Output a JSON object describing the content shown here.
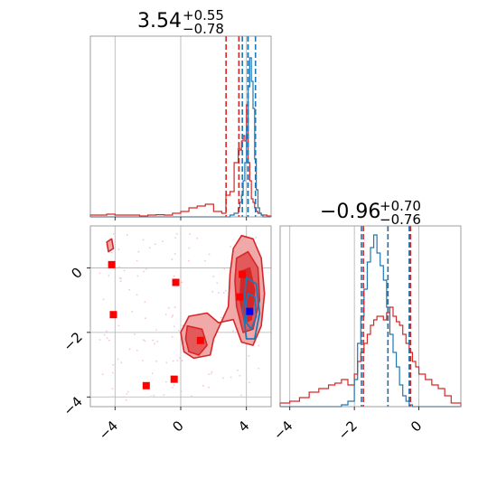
{
  "chart_data": [
    {
      "type": "histogram",
      "panel": "top-left",
      "title": {
        "value": "3.54",
        "plus": "+0.55",
        "minus": "−0.78"
      },
      "xlim": [
        -5.5,
        5.5
      ],
      "grid": true,
      "bin_edges": [
        -5.5,
        -5.0,
        -4.5,
        -4.0,
        -3.5,
        -3.0,
        -2.5,
        -2.0,
        -1.5,
        -1.0,
        -0.5,
        0.0,
        0.5,
        1.0,
        1.5,
        2.0,
        2.5,
        2.75,
        3.0,
        3.25,
        3.5,
        3.6,
        3.7,
        3.8,
        3.9,
        4.0,
        4.1,
        4.2,
        4.3,
        4.4,
        4.5,
        4.6,
        4.7,
        4.8,
        4.9,
        5.0,
        5.25,
        5.5
      ],
      "series": [
        {
          "color": "#d62728",
          "counts": [
            0.01,
            0.01,
            0.015,
            0.01,
            0.01,
            0.01,
            0.005,
            0.01,
            0.012,
            0.01,
            0.02,
            0.03,
            0.05,
            0.06,
            0.07,
            0.03,
            0.02,
            0.12,
            0.14,
            0.3,
            0.38,
            0.37,
            0.42,
            0.45,
            0.42,
            0.62,
            0.3,
            0.2,
            0.1,
            0.08,
            0.05,
            0.03,
            0.02,
            0.02,
            0.01,
            0.01,
            0.005
          ]
        },
        {
          "color": "#1f77b4",
          "counts": [
            0,
            0,
            0,
            0,
            0,
            0,
            0,
            0,
            0,
            0,
            0,
            0,
            0,
            0,
            0,
            0,
            0,
            0,
            0.01,
            0.02,
            0.05,
            0.08,
            0.12,
            0.2,
            0.3,
            0.5,
            0.72,
            0.88,
            0.75,
            0.6,
            0.32,
            0.15,
            0.05,
            0.02,
            0.01,
            0,
            0
          ]
        }
      ],
      "quantile_lines": [
        {
          "color": "#d62728",
          "values": [
            2.76,
            3.54,
            4.09
          ]
        },
        {
          "color": "#1f77b4",
          "values": [
            3.75,
            4.1,
            4.55
          ]
        }
      ]
    },
    {
      "type": "histogram",
      "panel": "bottom-right",
      "title": {
        "value": "−0.96",
        "plus": "+0.70",
        "minus": "−0.76"
      },
      "xlim": [
        -4.3,
        1.3
      ],
      "grid": true,
      "xticks": [
        -4,
        -2,
        0
      ],
      "bin_edges": [
        -4.3,
        -4.0,
        -3.7,
        -3.4,
        -3.1,
        -2.8,
        -2.6,
        -2.4,
        -2.2,
        -2.0,
        -1.9,
        -1.8,
        -1.7,
        -1.6,
        -1.5,
        -1.4,
        -1.3,
        -1.2,
        -1.1,
        -1.0,
        -0.9,
        -0.8,
        -0.7,
        -0.6,
        -0.5,
        -0.4,
        -0.3,
        -0.2,
        -0.1,
        0.0,
        0.2,
        0.4,
        0.6,
        0.8,
        1.0,
        1.3
      ],
      "series": [
        {
          "color": "#d62728",
          "counts": [
            0.02,
            0.03,
            0.05,
            0.08,
            0.1,
            0.12,
            0.13,
            0.15,
            0.12,
            0.18,
            0.25,
            0.3,
            0.35,
            0.4,
            0.45,
            0.48,
            0.5,
            0.5,
            0.48,
            0.52,
            0.55,
            0.5,
            0.47,
            0.45,
            0.4,
            0.35,
            0.3,
            0.25,
            0.22,
            0.18,
            0.15,
            0.12,
            0.1,
            0.06,
            0.02
          ]
        },
        {
          "color": "#1f77b4",
          "counts": [
            0,
            0,
            0,
            0,
            0,
            0,
            0,
            0.01,
            0.03,
            0.15,
            0.35,
            0.5,
            0.65,
            0.8,
            0.88,
            0.95,
            0.85,
            0.78,
            0.7,
            0.55,
            0.4,
            0.3,
            0.22,
            0.12,
            0.06,
            0.03,
            0.01,
            0,
            0,
            0,
            0,
            0,
            0,
            0,
            0
          ]
        }
      ],
      "quantile_lines": [
        {
          "color": "#d62728",
          "values": [
            -1.72,
            -0.96,
            -0.26
          ]
        },
        {
          "color": "#1f77b4",
          "values": [
            -1.78,
            -0.96,
            -0.3
          ]
        }
      ]
    },
    {
      "type": "scatter-contour",
      "panel": "bottom-left",
      "xlim": [
        -5.5,
        5.5
      ],
      "ylim": [
        -4.3,
        1.3
      ],
      "xticks": [
        -4,
        0,
        4
      ],
      "yticks": [
        0,
        -2,
        -4
      ],
      "grid": true,
      "red_contours": [
        {
          "level": "outer",
          "fill": "#f0a8a8",
          "points": [
            [
              3.0,
              -0.2
            ],
            [
              3.2,
              0.6
            ],
            [
              3.7,
              1.0
            ],
            [
              4.4,
              0.9
            ],
            [
              4.9,
              0.3
            ],
            [
              5.1,
              -0.8
            ],
            [
              4.9,
              -1.8
            ],
            [
              4.4,
              -2.4
            ],
            [
              3.7,
              -2.3
            ],
            [
              3.2,
              -1.6
            ],
            [
              2.3,
              -1.7
            ],
            [
              1.6,
              -1.4
            ],
            [
              0.5,
              -1.5
            ],
            [
              0.0,
              -2.0
            ],
            [
              0.2,
              -2.6
            ],
            [
              0.8,
              -2.8
            ],
            [
              1.8,
              -2.7
            ],
            [
              2.0,
              -2.2
            ],
            [
              2.9,
              -1.2
            ]
          ]
        },
        {
          "level": "middle",
          "fill": "#e45a5a",
          "points": [
            [
              3.4,
              0.3
            ],
            [
              4.1,
              0.5
            ],
            [
              4.7,
              0.0
            ],
            [
              4.8,
              -1.0
            ],
            [
              4.4,
              -1.9
            ],
            [
              3.8,
              -2.0
            ],
            [
              3.4,
              -1.2
            ],
            [
              3.3,
              -0.4
            ]
          ]
        },
        {
          "level": "inner",
          "fill": "#d62728",
          "points": [
            [
              3.7,
              -0.1
            ],
            [
              4.2,
              0.0
            ],
            [
              4.5,
              -0.7
            ],
            [
              4.3,
              -1.6
            ],
            [
              3.9,
              -1.7
            ],
            [
              3.6,
              -1.0
            ]
          ]
        },
        {
          "level": "island",
          "fill": "#e45a5a",
          "points": [
            [
              0.4,
              -1.8
            ],
            [
              1.3,
              -1.9
            ],
            [
              1.6,
              -2.4
            ],
            [
              1.1,
              -2.7
            ],
            [
              0.5,
              -2.6
            ],
            [
              0.3,
              -2.2
            ]
          ]
        },
        {
          "level": "small",
          "fill": "#f0a8a8",
          "points": [
            [
              -4.5,
              0.8
            ],
            [
              -4.2,
              0.9
            ],
            [
              -4.1,
              0.6
            ],
            [
              -4.4,
              0.5
            ]
          ]
        }
      ],
      "blue_contours": [
        {
          "level": "outer",
          "points": [
            [
              4.0,
              -0.3
            ],
            [
              4.6,
              -0.5
            ],
            [
              4.8,
              -1.4
            ],
            [
              4.5,
              -2.2
            ],
            [
              4.0,
              -2.2
            ],
            [
              3.8,
              -1.3
            ]
          ]
        },
        {
          "level": "inner",
          "points": [
            [
              4.1,
              -0.8
            ],
            [
              4.5,
              -0.9
            ],
            [
              4.6,
              -1.5
            ],
            [
              4.3,
              -1.9
            ],
            [
              4.0,
              -1.7
            ],
            [
              3.95,
              -1.2
            ]
          ]
        }
      ],
      "red_markers": [
        [
          -4.2,
          0.1
        ],
        [
          -4.1,
          -1.45
        ],
        [
          -0.3,
          -0.45
        ],
        [
          1.2,
          -2.25
        ],
        [
          -2.1,
          -3.65
        ],
        [
          -0.4,
          -3.45
        ],
        [
          3.75,
          -0.2
        ],
        [
          3.6,
          -0.9
        ]
      ],
      "blue_markers": [
        [
          4.2,
          -1.35
        ]
      ],
      "colors": {
        "red": "#d62728",
        "blue": "#1f77b4",
        "marker_red": "#ff0000",
        "marker_blue": "#0000ff",
        "grid": "#b0b0b0",
        "scatter_dots": "#f4c6d8"
      }
    }
  ]
}
